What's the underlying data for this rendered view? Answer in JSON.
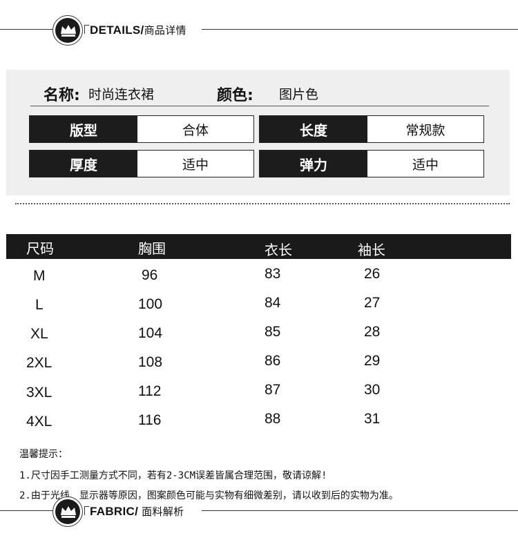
{
  "details_header": {
    "title": "DETAILS/",
    "subtitle": "商品详情"
  },
  "product": {
    "name_label": "名称:",
    "name_value": "时尚连衣裙",
    "color_label": "颜色:",
    "color_value": "图片色"
  },
  "attributes": [
    {
      "key": "版型",
      "value": "合体"
    },
    {
      "key": "长度",
      "value": "常规款"
    },
    {
      "key": "厚度",
      "value": "适中"
    },
    {
      "key": "弹力",
      "value": "适中"
    }
  ],
  "size_table": {
    "headers": [
      "尺码",
      "胸围",
      "衣长",
      "袖长"
    ],
    "rows": [
      [
        "M",
        "96",
        "83",
        "26"
      ],
      [
        "L",
        "100",
        "84",
        "27"
      ],
      [
        "XL",
        "104",
        "85",
        "28"
      ],
      [
        "2XL",
        "108",
        "86",
        "29"
      ],
      [
        "3XL",
        "112",
        "87",
        "30"
      ],
      [
        "4XL",
        "116",
        "88",
        "31"
      ]
    ]
  },
  "notes": {
    "title": "温馨提示：",
    "items": [
      "1.尺寸因手工测量方式不同，若有2-3CM误差皆属合理范围，敬请谅解!",
      "2.由于光线、显示器等原因，图案颜色可能与实物有细微差别，请以收到后的实物为准。"
    ]
  },
  "fabric_header": {
    "title": "FABRIC/",
    "subtitle": " 面料解析"
  },
  "icon": "crown-icon"
}
